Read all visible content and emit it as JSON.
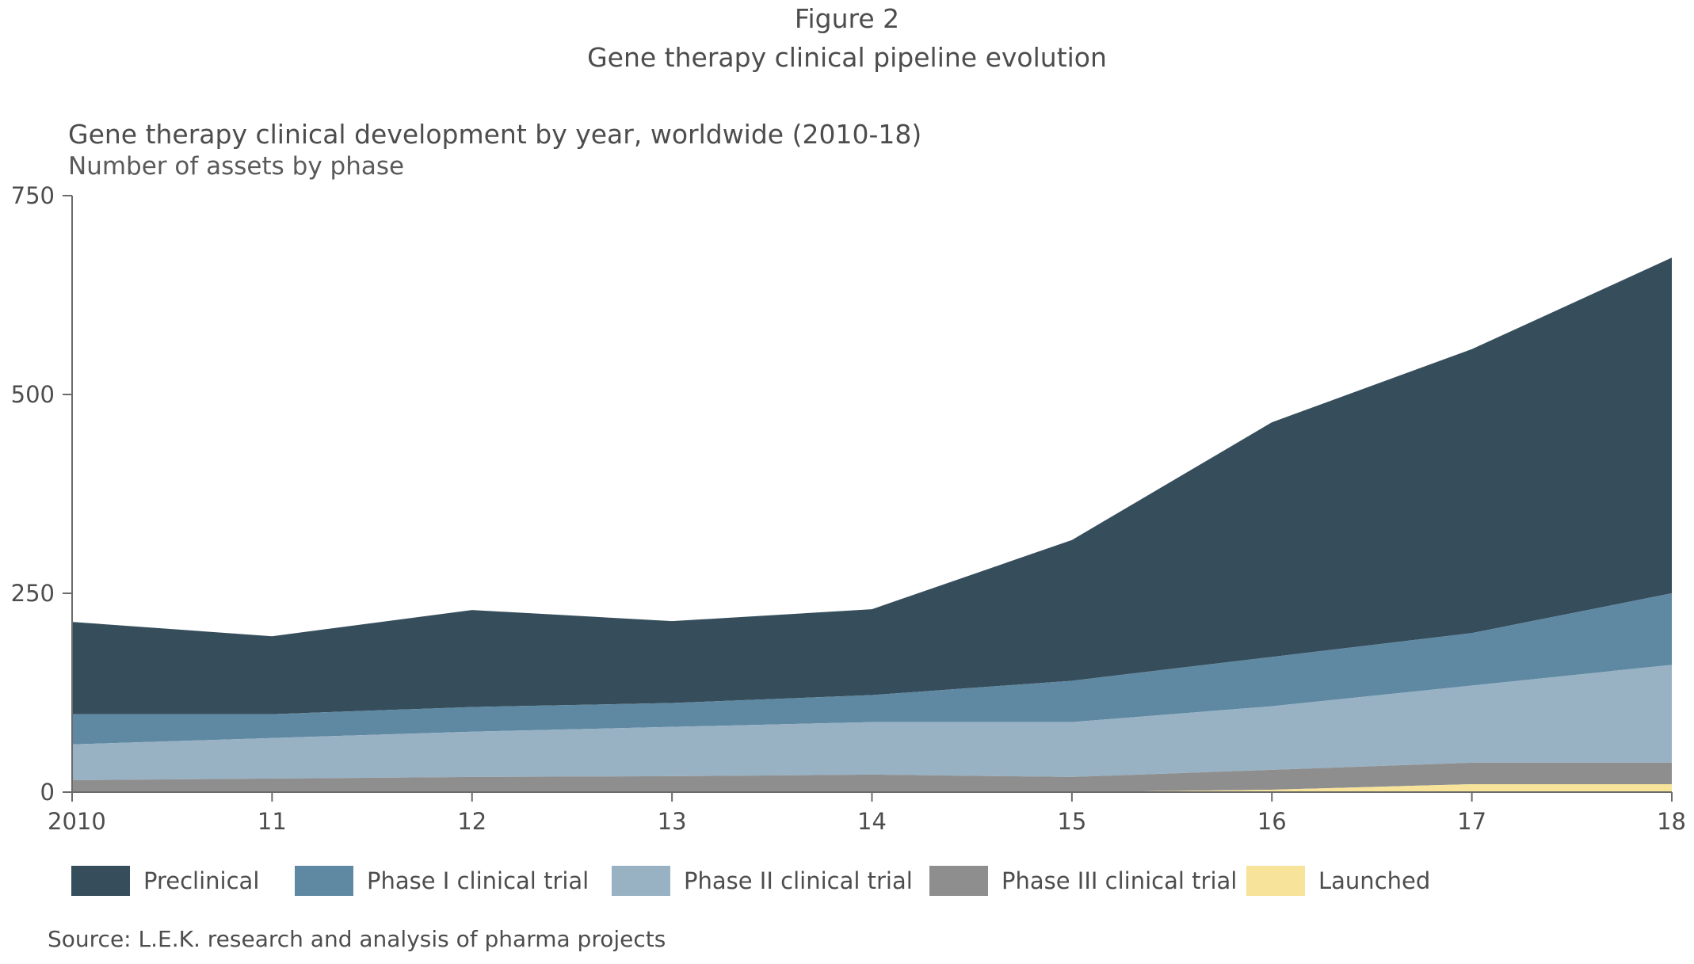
{
  "figure": {
    "label": "Figure 2",
    "title": "Gene therapy clinical pipeline evolution",
    "source": "Source: L.E.K. research and analysis of pharma projects"
  },
  "chart_data": {
    "type": "area",
    "stacked": true,
    "title": "Gene therapy clinical development by year, worldwide (2010-18)",
    "subtitle": "Number of assets by phase",
    "xlabel": "",
    "ylabel": "",
    "categories": [
      "2010",
      "11",
      "12",
      "13",
      "14",
      "15",
      "16",
      "17",
      "18"
    ],
    "ylim": [
      0,
      750
    ],
    "yticks": [
      0,
      250,
      500,
      750
    ],
    "grid": false,
    "legend_position": "bottom",
    "series": [
      {
        "name": "Launched",
        "color": "#f7e39a",
        "values": [
          0,
          0,
          0,
          0,
          0,
          0,
          3,
          10,
          10
        ]
      },
      {
        "name": "Phase III clinical trial",
        "color": "#8e8e8e",
        "values": [
          15,
          17,
          19,
          20,
          22,
          19,
          25,
          27,
          27
        ]
      },
      {
        "name": "Phase II clinical trial",
        "color": "#98b2c4",
        "values": [
          45,
          51,
          57,
          62,
          66,
          69,
          80,
          97,
          123
        ]
      },
      {
        "name": "Phase I clinical trial",
        "color": "#5f89a3",
        "values": [
          38,
          30,
          31,
          30,
          34,
          52,
          62,
          66,
          90
        ]
      },
      {
        "name": "Preclinical",
        "color": "#364e5c",
        "values": [
          116,
          98,
          122,
          103,
          108,
          177,
          295,
          357,
          422
        ]
      }
    ],
    "legend_order": [
      "Preclinical",
      "Phase I clinical trial",
      "Phase II clinical trial",
      "Phase III clinical trial",
      "Launched"
    ]
  }
}
